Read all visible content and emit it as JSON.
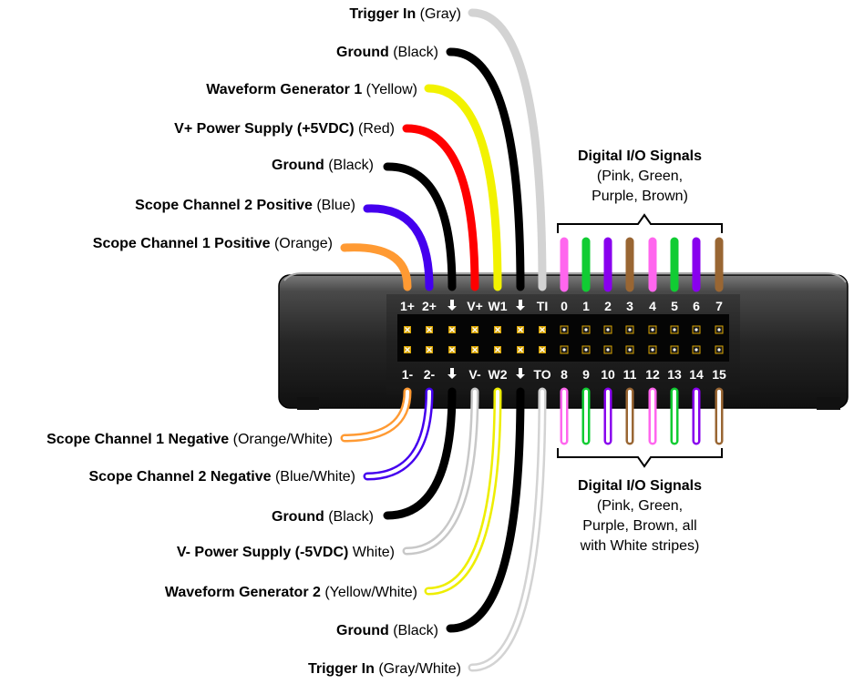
{
  "top_labels": [
    {
      "bold": "Trigger In",
      "normal": " (Gray)"
    },
    {
      "bold": "Ground",
      "normal": " (Black)"
    },
    {
      "bold": "Waveform Generator 1",
      "normal": " (Yellow)"
    },
    {
      "bold": "V+ Power Supply (+5VDC)",
      "normal": " (Red)"
    },
    {
      "bold": "Ground",
      "normal": " (Black)"
    },
    {
      "bold": "Scope Channel 2 Positive",
      "normal": " (Blue)"
    },
    {
      "bold": "Scope Channel 1 Positive",
      "normal": " (Orange)"
    }
  ],
  "bottom_labels": [
    {
      "bold": "Scope Channel 1 Negative",
      "normal": " (Orange/White)"
    },
    {
      "bold": "Scope Channel 2 Negative",
      "normal": " (Blue/White)"
    },
    {
      "bold": "Ground",
      "normal": " (Black)"
    },
    {
      "bold": "V- Power Supply (-5VDC)",
      "normal": " White)"
    },
    {
      "bold": "Waveform Generator 2",
      "normal": " (Yellow/White)"
    },
    {
      "bold": "Ground",
      "normal": " (Black)"
    },
    {
      "bold": "Trigger In",
      "normal": " (Gray/White)"
    }
  ],
  "top_pins": [
    "1+",
    "2+",
    "⬇",
    "V+",
    "W1",
    "⬇",
    "TI",
    "0",
    "1",
    "2",
    "3",
    "4",
    "5",
    "6",
    "7"
  ],
  "bottom_pins": [
    "1-",
    "2-",
    "⬇",
    "V-",
    "W2",
    "⬇",
    "TO",
    "8",
    "9",
    "10",
    "11",
    "12",
    "13",
    "14",
    "15"
  ],
  "digital_top": {
    "title": "Digital I/O Signals",
    "lines": [
      "(Pink, Green,",
      "Purple, Brown)"
    ]
  },
  "digital_bottom": {
    "title": "Digital I/O Signals",
    "lines": [
      "(Pink, Green,",
      "Purple, Brown, all",
      "with White stripes)"
    ]
  },
  "colors": {
    "gray": "#d3d3d3",
    "black": "#000000",
    "yellow": "#ffff33",
    "red": "#ff0000",
    "blue": "#4400ee",
    "orange": "#ff9a33",
    "pink": "#ff66ee",
    "green": "#11cc33",
    "purple": "#8800ee",
    "brown": "#996633",
    "white": "#ffffff"
  }
}
